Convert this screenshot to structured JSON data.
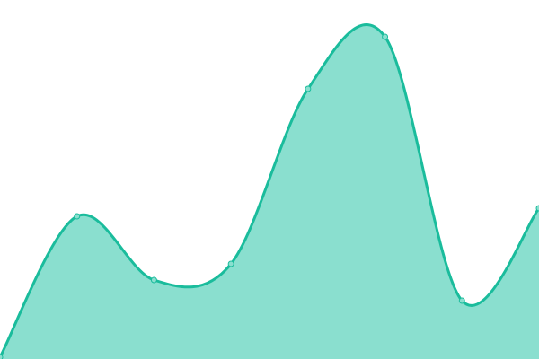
{
  "chart_data": {
    "type": "area",
    "x": [
      0,
      1,
      2,
      3,
      4,
      5,
      6,
      7
    ],
    "values": [
      2,
      159,
      88,
      106,
      301,
      359,
      65,
      168
    ],
    "ylim": [
      0,
      400
    ],
    "grid": false,
    "smooth": true,
    "colors": {
      "line": "#1abc9c",
      "fill": "#8adfcf",
      "point_fill": "#8adfcf"
    }
  }
}
